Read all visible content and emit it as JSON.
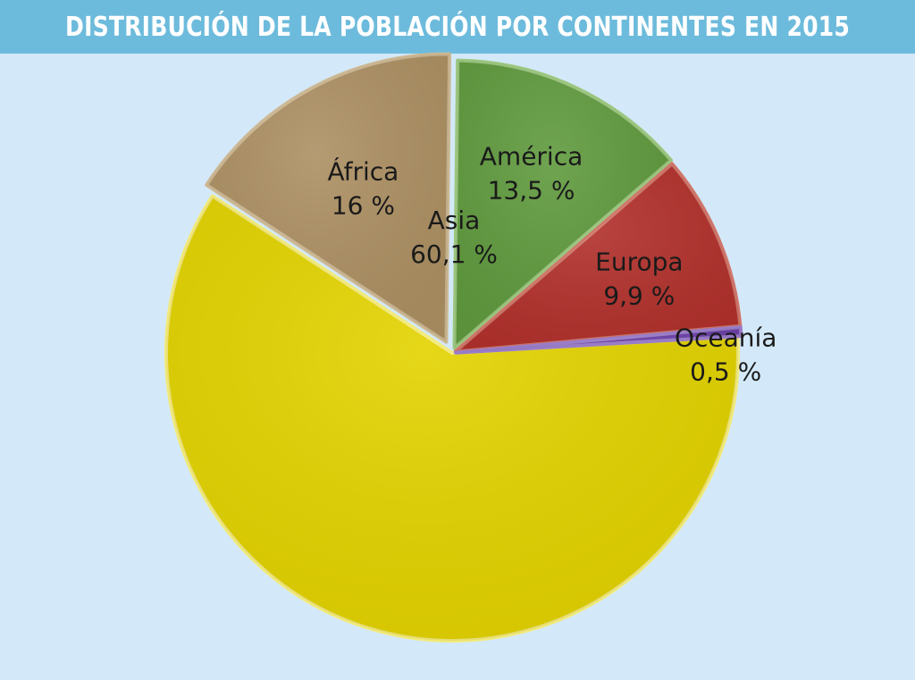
{
  "chart_data": {
    "type": "pie",
    "title": "DISTRIBUCIÓN DE LA POBLACIÓN POR CONTINENTES EN 2015",
    "slices": [
      {
        "label": "Asia",
        "value": 60.1,
        "value_label": "60,1 %",
        "color": "#e3d300",
        "edge": "#f3ea7a"
      },
      {
        "label": "África",
        "value": 16,
        "value_label": "16 %",
        "color": "#ad9063",
        "edge": "#cdb893"
      },
      {
        "label": "América",
        "value": 13.5,
        "value_label": "13,5 %",
        "color": "#609a3e",
        "edge": "#9cc77f"
      },
      {
        "label": "Europa",
        "value": 9.9,
        "value_label": "9,9 %",
        "color": "#b2312c",
        "edge": "#d1766a"
      },
      {
        "label": "Oceanía",
        "value": 0.5,
        "value_label": "0,5 %",
        "color": "#6b3fa8",
        "edge": "#9a7cc9"
      }
    ]
  }
}
